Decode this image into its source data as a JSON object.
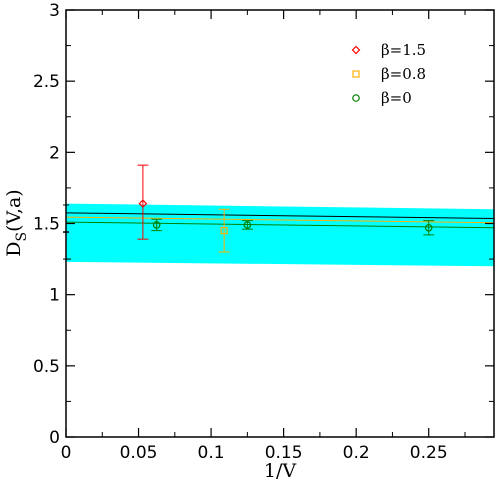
{
  "chart_data": {
    "type": "scatter",
    "xlabel": "1/V",
    "ylabel_main": "D",
    "ylabel_sub": "S",
    "ylabel_rest": "(V,a)",
    "xlim": [
      0,
      0.295
    ],
    "ylim": [
      0,
      3
    ],
    "xticks": [
      {
        "v": 0,
        "label": "0"
      },
      {
        "v": 0.05,
        "label": "0.05"
      },
      {
        "v": 0.1,
        "label": "0.1"
      },
      {
        "v": 0.15,
        "label": "0.15"
      },
      {
        "v": 0.2,
        "label": "0.2"
      },
      {
        "v": 0.25,
        "label": "0.25"
      }
    ],
    "yticks": [
      {
        "v": 0,
        "label": "0"
      },
      {
        "v": 0.5,
        "label": "0.5"
      },
      {
        "v": 1,
        "label": "1"
      },
      {
        "v": 1.5,
        "label": "1.5"
      },
      {
        "v": 2,
        "label": "2"
      },
      {
        "v": 2.5,
        "label": "2.5"
      },
      {
        "v": 3,
        "label": "3"
      }
    ],
    "grid": false,
    "legend_position": "top-right",
    "band": {
      "color": "#00ffff",
      "upper": [
        [
          0,
          1.64
        ],
        [
          0.295,
          1.6
        ]
      ],
      "lower": [
        [
          0,
          1.23
        ],
        [
          0.295,
          1.2
        ]
      ]
    },
    "fit_lines": [
      {
        "color": "#000000",
        "points": [
          [
            0,
            1.575
          ],
          [
            0.295,
            1.535
          ]
        ]
      },
      {
        "color": "#008000",
        "points": [
          [
            0,
            1.51
          ],
          [
            0.295,
            1.47
          ]
        ]
      },
      {
        "color": "#ffb000",
        "points": [
          [
            0,
            1.545
          ],
          [
            0.295,
            1.505
          ]
        ]
      }
    ],
    "extrapolated_point": {
      "x": 0,
      "y": 1.44,
      "lo": 1.25,
      "hi": 1.63,
      "color": "#000000"
    },
    "series": [
      {
        "name": "β=1.5",
        "marker": "diamond",
        "color": "#ff0000",
        "points": [
          {
            "x": 0.053,
            "y": 1.64,
            "lo": 1.39,
            "hi": 1.91
          }
        ]
      },
      {
        "name": "β=0.8",
        "marker": "square",
        "color": "#ffb000",
        "points": [
          {
            "x": 0.109,
            "y": 1.45,
            "lo": 1.3,
            "hi": 1.6
          }
        ]
      },
      {
        "name": "β=0",
        "marker": "circle",
        "color": "#008000",
        "points": [
          {
            "x": 0.0625,
            "y": 1.49,
            "lo": 1.45,
            "hi": 1.53
          },
          {
            "x": 0.125,
            "y": 1.49,
            "lo": 1.46,
            "hi": 1.52
          },
          {
            "x": 0.25,
            "y": 1.47,
            "lo": 1.42,
            "hi": 1.52
          }
        ]
      }
    ]
  }
}
